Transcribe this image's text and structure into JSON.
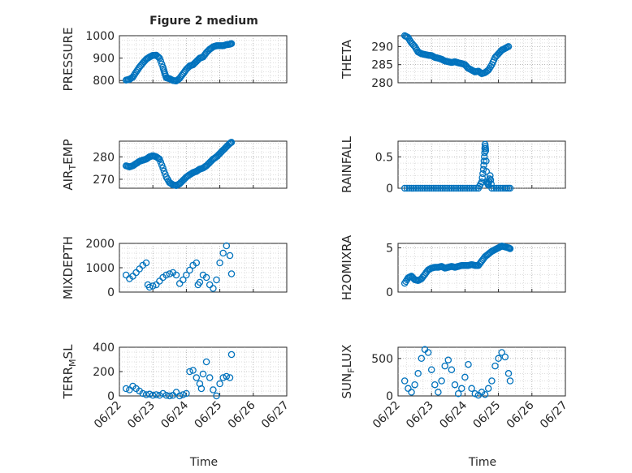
{
  "figure": {
    "title": "Figure 2 medium"
  },
  "colors": {
    "marker": "#0072BD",
    "axes": "#262626",
    "background": "#ffffff"
  },
  "chart_data": [
    {
      "type": "scatter",
      "ylabel": "PRESSURE",
      "title": "Figure 2 medium",
      "ylim": [
        790,
        1000
      ],
      "yticks": [
        800,
        900,
        1000
      ],
      "xticks": [
        "06/22",
        "06/23",
        "06/24",
        "06/25",
        "06/26",
        "06/27"
      ],
      "xlim": [
        0,
        5
      ],
      "grid": true,
      "points": [
        [
          0.2,
          802
        ],
        [
          0.3,
          805
        ],
        [
          0.4,
          815
        ],
        [
          0.5,
          838
        ],
        [
          0.6,
          860
        ],
        [
          0.7,
          878
        ],
        [
          0.8,
          895
        ],
        [
          0.9,
          905
        ],
        [
          1.0,
          912
        ],
        [
          1.1,
          913
        ],
        [
          1.2,
          900
        ],
        [
          1.3,
          860
        ],
        [
          1.35,
          835
        ],
        [
          1.4,
          812
        ],
        [
          1.5,
          808
        ],
        [
          1.6,
          800
        ],
        [
          1.7,
          798
        ],
        [
          1.8,
          810
        ],
        [
          1.9,
          830
        ],
        [
          2.0,
          850
        ],
        [
          2.1,
          865
        ],
        [
          2.2,
          870
        ],
        [
          2.3,
          885
        ],
        [
          2.4,
          900
        ],
        [
          2.5,
          905
        ],
        [
          2.6,
          925
        ],
        [
          2.7,
          940
        ],
        [
          2.8,
          950
        ],
        [
          2.9,
          955
        ],
        [
          3.0,
          955
        ],
        [
          3.1,
          955
        ],
        [
          3.2,
          960
        ],
        [
          3.3,
          962
        ],
        [
          3.35,
          965
        ]
      ]
    },
    {
      "type": "scatter",
      "ylabel": "THETA",
      "ylim": [
        280,
        293
      ],
      "yticks": [
        280,
        285,
        290
      ],
      "xticks": [
        "06/22",
        "06/23",
        "06/24",
        "06/25",
        "06/26",
        "06/27"
      ],
      "xlim": [
        0,
        5
      ],
      "grid": true,
      "points": [
        [
          0.2,
          293
        ],
        [
          0.3,
          292.5
        ],
        [
          0.4,
          291
        ],
        [
          0.5,
          290
        ],
        [
          0.6,
          288.5
        ],
        [
          0.7,
          288
        ],
        [
          0.8,
          287.8
        ],
        [
          0.9,
          287.6
        ],
        [
          1.0,
          287.5
        ],
        [
          1.1,
          287
        ],
        [
          1.2,
          286.8
        ],
        [
          1.3,
          286.5
        ],
        [
          1.4,
          286
        ],
        [
          1.5,
          285.8
        ],
        [
          1.6,
          285.6
        ],
        [
          1.7,
          285.8
        ],
        [
          1.8,
          285.5
        ],
        [
          1.9,
          285.3
        ],
        [
          2.0,
          285
        ],
        [
          2.1,
          284
        ],
        [
          2.2,
          283.5
        ],
        [
          2.3,
          283
        ],
        [
          2.4,
          283.2
        ],
        [
          2.5,
          282.5
        ],
        [
          2.6,
          282.8
        ],
        [
          2.7,
          283.5
        ],
        [
          2.8,
          285
        ],
        [
          2.9,
          287
        ],
        [
          3.0,
          288
        ],
        [
          3.1,
          289
        ],
        [
          3.2,
          289.5
        ],
        [
          3.3,
          290
        ]
      ]
    },
    {
      "type": "scatter",
      "ylabel": "AIR_TEMP",
      "ylim": [
        266,
        287
      ],
      "yticks": [
        270,
        280
      ],
      "xticks": [
        "06/22",
        "06/23",
        "06/24",
        "06/25",
        "06/26",
        "06/27"
      ],
      "xlim": [
        0,
        5
      ],
      "grid": true,
      "points": [
        [
          0.2,
          276
        ],
        [
          0.3,
          275.5
        ],
        [
          0.4,
          276
        ],
        [
          0.5,
          277
        ],
        [
          0.6,
          278
        ],
        [
          0.7,
          278.5
        ],
        [
          0.8,
          279
        ],
        [
          0.9,
          280
        ],
        [
          1.0,
          280.5
        ],
        [
          1.1,
          280
        ],
        [
          1.2,
          279
        ],
        [
          1.3,
          275
        ],
        [
          1.4,
          271
        ],
        [
          1.5,
          268.5
        ],
        [
          1.6,
          267.5
        ],
        [
          1.7,
          267.2
        ],
        [
          1.8,
          268
        ],
        [
          1.9,
          269.5
        ],
        [
          2.0,
          271
        ],
        [
          2.1,
          272
        ],
        [
          2.2,
          273
        ],
        [
          2.3,
          273.5
        ],
        [
          2.4,
          274.5
        ],
        [
          2.5,
          275
        ],
        [
          2.6,
          276
        ],
        [
          2.7,
          277.5
        ],
        [
          2.8,
          279
        ],
        [
          2.9,
          280
        ],
        [
          3.0,
          281.5
        ],
        [
          3.1,
          283
        ],
        [
          3.2,
          284.5
        ],
        [
          3.3,
          286
        ],
        [
          3.35,
          286.5
        ]
      ]
    },
    {
      "type": "scatter",
      "ylabel": "RAINFALL",
      "ylim": [
        0,
        0.75
      ],
      "yticks": [
        0,
        0.5
      ],
      "xticks": [
        "06/22",
        "06/23",
        "06/24",
        "06/25",
        "06/26",
        "06/27"
      ],
      "xlim": [
        0,
        5
      ],
      "grid": true,
      "points": [
        [
          0.2,
          0
        ],
        [
          0.4,
          0
        ],
        [
          0.6,
          0
        ],
        [
          0.8,
          0
        ],
        [
          1.0,
          0
        ],
        [
          1.2,
          0
        ],
        [
          1.4,
          0
        ],
        [
          1.6,
          0
        ],
        [
          1.8,
          0
        ],
        [
          2.0,
          0
        ],
        [
          2.2,
          0
        ],
        [
          2.4,
          0
        ],
        [
          2.5,
          0.1
        ],
        [
          2.55,
          0.3
        ],
        [
          2.58,
          0.5
        ],
        [
          2.6,
          0.7
        ],
        [
          2.62,
          0.6
        ],
        [
          2.65,
          0.1
        ],
        [
          2.7,
          0.05
        ],
        [
          2.75,
          0.2
        ],
        [
          2.8,
          0
        ],
        [
          3.0,
          0
        ],
        [
          3.2,
          0
        ],
        [
          3.35,
          0
        ]
      ]
    },
    {
      "type": "scatter",
      "ylabel": "MIXDEPTH",
      "ylim": [
        0,
        2000
      ],
      "yticks": [
        0,
        1000,
        2000
      ],
      "xticks": [
        "06/22",
        "06/23",
        "06/24",
        "06/25",
        "06/26",
        "06/27"
      ],
      "xlim": [
        0,
        5
      ],
      "grid": true,
      "points": [
        [
          0.2,
          700
        ],
        [
          0.3,
          550
        ],
        [
          0.4,
          650
        ],
        [
          0.5,
          800
        ],
        [
          0.6,
          950
        ],
        [
          0.7,
          1100
        ],
        [
          0.8,
          1200
        ],
        [
          0.85,
          300
        ],
        [
          0.9,
          200
        ],
        [
          1.0,
          250
        ],
        [
          1.1,
          300
        ],
        [
          1.2,
          450
        ],
        [
          1.3,
          600
        ],
        [
          1.4,
          700
        ],
        [
          1.5,
          750
        ],
        [
          1.6,
          800
        ],
        [
          1.7,
          700
        ],
        [
          1.8,
          350
        ],
        [
          1.9,
          500
        ],
        [
          2.0,
          700
        ],
        [
          2.1,
          900
        ],
        [
          2.2,
          1100
        ],
        [
          2.3,
          1200
        ],
        [
          2.35,
          300
        ],
        [
          2.4,
          400
        ],
        [
          2.5,
          700
        ],
        [
          2.6,
          600
        ],
        [
          2.7,
          300
        ],
        [
          2.8,
          150
        ],
        [
          2.9,
          500
        ],
        [
          3.0,
          1200
        ],
        [
          3.1,
          1600
        ],
        [
          3.2,
          1900
        ],
        [
          3.3,
          1500
        ],
        [
          3.35,
          750
        ]
      ]
    },
    {
      "type": "scatter",
      "ylabel": "H2OMIXRA",
      "ylim": [
        0,
        5.5
      ],
      "yticks": [
        0,
        5
      ],
      "xticks": [
        "06/22",
        "06/23",
        "06/24",
        "06/25",
        "06/26",
        "06/27"
      ],
      "xlim": [
        0,
        5
      ],
      "grid": true,
      "points": [
        [
          0.2,
          1.0
        ],
        [
          0.3,
          1.6
        ],
        [
          0.4,
          1.8
        ],
        [
          0.5,
          1.4
        ],
        [
          0.6,
          1.3
        ],
        [
          0.7,
          1.5
        ],
        [
          0.8,
          2.0
        ],
        [
          0.9,
          2.5
        ],
        [
          1.0,
          2.7
        ],
        [
          1.1,
          2.8
        ],
        [
          1.2,
          2.8
        ],
        [
          1.3,
          2.9
        ],
        [
          1.4,
          2.7
        ],
        [
          1.5,
          2.8
        ],
        [
          1.6,
          2.9
        ],
        [
          1.7,
          2.8
        ],
        [
          1.8,
          2.9
        ],
        [
          1.9,
          3.0
        ],
        [
          2.0,
          3.0
        ],
        [
          2.1,
          3.0
        ],
        [
          2.2,
          3.1
        ],
        [
          2.3,
          3.0
        ],
        [
          2.4,
          3.0
        ],
        [
          2.5,
          3.5
        ],
        [
          2.6,
          4.0
        ],
        [
          2.7,
          4.3
        ],
        [
          2.8,
          4.6
        ],
        [
          2.9,
          4.8
        ],
        [
          3.0,
          5.0
        ],
        [
          3.1,
          5.2
        ],
        [
          3.2,
          5.1
        ],
        [
          3.3,
          5.0
        ],
        [
          3.35,
          4.9
        ]
      ]
    },
    {
      "type": "scatter",
      "ylabel": "TERR_MSL",
      "ylim": [
        0,
        400
      ],
      "yticks": [
        0,
        200,
        400
      ],
      "xticks": [
        "06/22",
        "06/23",
        "06/24",
        "06/25",
        "06/26",
        "06/27"
      ],
      "xlim": [
        0,
        5
      ],
      "grid": true,
      "points": [
        [
          0.2,
          60
        ],
        [
          0.3,
          50
        ],
        [
          0.4,
          80
        ],
        [
          0.5,
          60
        ],
        [
          0.6,
          40
        ],
        [
          0.7,
          20
        ],
        [
          0.8,
          10
        ],
        [
          0.9,
          15
        ],
        [
          1.0,
          5
        ],
        [
          1.1,
          10
        ],
        [
          1.2,
          5
        ],
        [
          1.3,
          20
        ],
        [
          1.4,
          5
        ],
        [
          1.5,
          0
        ],
        [
          1.6,
          5
        ],
        [
          1.7,
          30
        ],
        [
          1.8,
          0
        ],
        [
          1.9,
          10
        ],
        [
          2.0,
          20
        ],
        [
          2.1,
          200
        ],
        [
          2.2,
          210
        ],
        [
          2.3,
          150
        ],
        [
          2.4,
          100
        ],
        [
          2.45,
          60
        ],
        [
          2.5,
          180
        ],
        [
          2.6,
          280
        ],
        [
          2.7,
          150
        ],
        [
          2.8,
          50
        ],
        [
          2.9,
          0
        ],
        [
          3.0,
          100
        ],
        [
          3.1,
          150
        ],
        [
          3.2,
          160
        ],
        [
          3.3,
          150
        ],
        [
          3.35,
          340
        ]
      ]
    },
    {
      "type": "scatter",
      "ylabel": "SUN_FLUX",
      "ylim": [
        0,
        650
      ],
      "yticks": [
        0,
        500
      ],
      "xticks": [
        "06/22",
        "06/23",
        "06/24",
        "06/25",
        "06/26",
        "06/27"
      ],
      "xlim": [
        0,
        5
      ],
      "grid": true,
      "points": [
        [
          0.2,
          200
        ],
        [
          0.3,
          100
        ],
        [
          0.4,
          50
        ],
        [
          0.5,
          150
        ],
        [
          0.6,
          300
        ],
        [
          0.7,
          500
        ],
        [
          0.8,
          620
        ],
        [
          0.9,
          580
        ],
        [
          1.0,
          350
        ],
        [
          1.1,
          150
        ],
        [
          1.2,
          50
        ],
        [
          1.3,
          200
        ],
        [
          1.4,
          400
        ],
        [
          1.5,
          480
        ],
        [
          1.6,
          350
        ],
        [
          1.7,
          150
        ],
        [
          1.8,
          30
        ],
        [
          1.9,
          100
        ],
        [
          2.0,
          250
        ],
        [
          2.1,
          420
        ],
        [
          2.2,
          100
        ],
        [
          2.3,
          30
        ],
        [
          2.4,
          10
        ],
        [
          2.5,
          50
        ],
        [
          2.6,
          20
        ],
        [
          2.7,
          100
        ],
        [
          2.8,
          200
        ],
        [
          2.9,
          400
        ],
        [
          3.0,
          500
        ],
        [
          3.1,
          580
        ],
        [
          3.2,
          520
        ],
        [
          3.3,
          300
        ],
        [
          3.35,
          200
        ]
      ]
    }
  ],
  "xlabels": [
    "Time",
    "Time"
  ]
}
